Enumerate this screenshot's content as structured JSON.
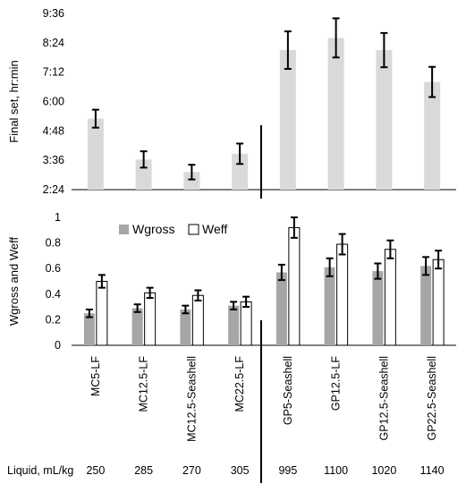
{
  "chart_data": [
    {
      "type": "bar",
      "ylabel": "Final set, hr:min",
      "ylim_minutes": [
        144,
        576
      ],
      "yticks": [
        "2:24",
        "3:36",
        "4:48",
        "6:00",
        "7:12",
        "8:24",
        "9:36"
      ],
      "ytick_values_minutes": [
        144,
        216,
        288,
        360,
        432,
        504,
        576
      ],
      "categories": [
        "MC5-LF",
        "MC12.5-LF",
        "MC12.5-Seashell",
        "MC22.5-LF",
        "GP5-Seashell",
        "GP12.5-LF",
        "GP12.5-Seashell",
        "GP22.5-Seashell"
      ],
      "series": [
        {
          "values_minutes": [
            318,
            218,
            187,
            232,
            486,
            516,
            486,
            408
          ],
          "errors_minutes": [
            22,
            20,
            18,
            25,
            46,
            48,
            42,
            37
          ],
          "color": "#d9d9d9"
        }
      ],
      "divider_after_index": 3
    },
    {
      "type": "bar",
      "ylabel": "Wgross and Weff",
      "ylim": [
        0,
        1
      ],
      "yticks": [
        "0",
        "0.2",
        "0.4",
        "0.6",
        "0.8",
        "1"
      ],
      "ytick_values": [
        0,
        0.2,
        0.4,
        0.6,
        0.8,
        1
      ],
      "categories": [
        "MC5-LF",
        "MC12.5-LF",
        "MC12.5-Seashell",
        "MC22.5-LF",
        "GP5-Seashell",
        "GP12.5-LF",
        "GP12.5-Seashell",
        "GP22.5-Seashell"
      ],
      "series": [
        {
          "name": "Wgross",
          "values": [
            0.25,
            0.29,
            0.28,
            0.31,
            0.57,
            0.61,
            0.58,
            0.62
          ],
          "errors": [
            0.03,
            0.03,
            0.03,
            0.03,
            0.06,
            0.07,
            0.06,
            0.07
          ],
          "color": "#a6a6a6"
        },
        {
          "name": "Weff",
          "values": [
            0.5,
            0.41,
            0.39,
            0.34,
            0.92,
            0.79,
            0.75,
            0.67
          ],
          "errors": [
            0.05,
            0.04,
            0.04,
            0.04,
            0.08,
            0.08,
            0.07,
            0.07
          ],
          "color": "#ffffff"
        }
      ],
      "legend": {
        "placement": "top-left"
      },
      "divider_after_index": 3
    }
  ],
  "liquid_row": {
    "label": "Liquid, mL/kg",
    "values": [
      "250",
      "285",
      "270",
      "305",
      "995",
      "1100",
      "1020",
      "1140"
    ]
  }
}
